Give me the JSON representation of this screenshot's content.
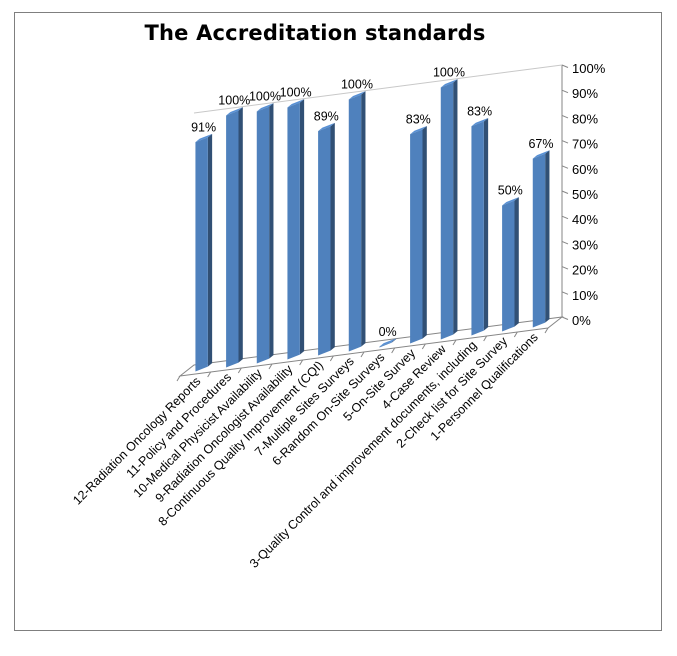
{
  "chart_data": {
    "type": "bar",
    "title": "The Accreditation standards",
    "categories": [
      "12-Radiation Oncology Reports",
      "11-Policy and Procedures",
      "10-Medical Physicist Availability",
      "9-Radiation Oncologist Availability",
      "8-Continuous Quality Improvement (CQI)",
      "7-Multiple Sites Surveys",
      "6-Random On-Site Surveys",
      "5-On-Site Survey",
      "4-Case Review",
      "3-Quality Control and improvement documents, including",
      "2-Check list for Site Survey",
      "1-Personnel Qualifications"
    ],
    "values": [
      91,
      100,
      100,
      100,
      89,
      100,
      0,
      83,
      100,
      83,
      50,
      67
    ],
    "value_labels": [
      "91%",
      "100%",
      "100%",
      "100%",
      "89%",
      "100%",
      "0%",
      "83%",
      "100%",
      "83%",
      "50%",
      "67%"
    ],
    "ylim": [
      0,
      100
    ],
    "yticks": [
      "0%",
      "10%",
      "20%",
      "30%",
      "40%",
      "50%",
      "60%",
      "70%",
      "80%",
      "90%",
      "100%"
    ],
    "style": "3d-column",
    "bar_color": "#4f81bd",
    "grid": false,
    "legend": "none"
  }
}
